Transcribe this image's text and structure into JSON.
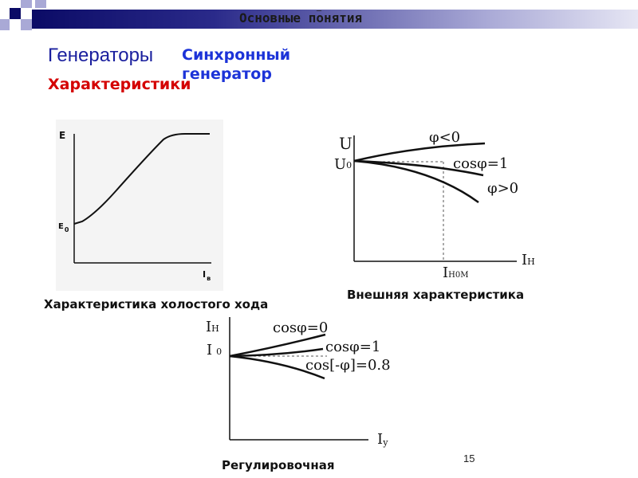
{
  "header": {
    "title": "Основные понятия",
    "top_mark": "_",
    "bar_gradient": [
      "#0b0b66",
      "#2a2a8a",
      "#a9a9d6",
      "#e6e6f4"
    ]
  },
  "labels": {
    "generators": "Генераторы",
    "synchronous": "Синхронный генератор",
    "characteristics": "Характеристики"
  },
  "colors": {
    "generators": "#1a1f9e",
    "synchronous": "#1c33d8",
    "characteristics": "#d40000"
  },
  "plot1": {
    "caption": "Характеристика холостого хода",
    "y_label": "E",
    "y0_label": "E",
    "y0_sub": "0",
    "x_label": "I",
    "x_sub": "в"
  },
  "plot2": {
    "caption": "Внешняя характеристика",
    "y_label": "U",
    "u0_label": "U",
    "u0_sub": "0",
    "x_label": "I",
    "x_sub": "Н",
    "xmark_label": "I",
    "xmark_sub": "Н0М",
    "curve_labels": [
      "φ<0",
      "cosφ=1",
      "φ>0"
    ]
  },
  "plot3": {
    "caption": "Регулировочная",
    "y_label": "I",
    "y_sub": "Н",
    "i0_label": "I",
    "i0_sub": "0",
    "x_label": "I",
    "x_sub": "у",
    "curve_labels": [
      "cosφ=0",
      "cosφ=1",
      "cos[-φ]=0.8"
    ]
  },
  "page_number": "15"
}
